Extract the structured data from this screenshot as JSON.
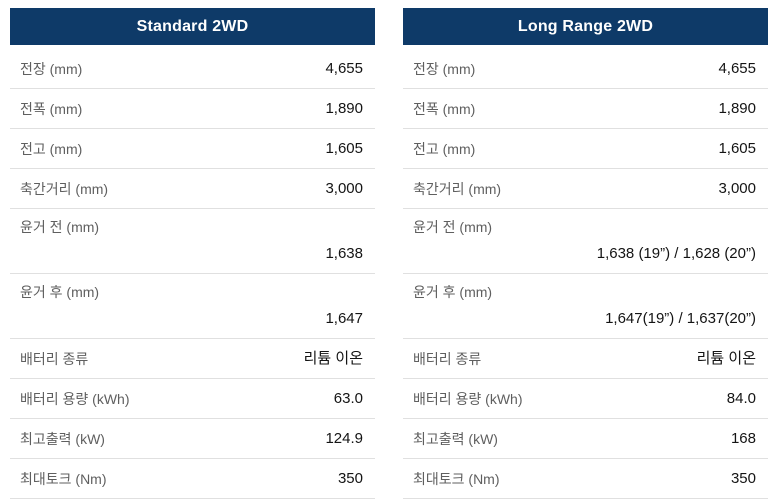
{
  "colors": {
    "header_bg": "#0e3a68",
    "header_text": "#ffffff",
    "label_text": "#5f5f5f",
    "value_text": "#141414",
    "divider": "#e0e0e0",
    "page_bg": "#ffffff"
  },
  "tables": [
    {
      "title": "Standard 2WD",
      "rows": [
        {
          "label": "전장 (mm)",
          "value": "4,655",
          "twoline": false
        },
        {
          "label": "전폭 (mm)",
          "value": "1,890",
          "twoline": false
        },
        {
          "label": "전고 (mm)",
          "value": "1,605",
          "twoline": false
        },
        {
          "label": "축간거리 (mm)",
          "value": "3,000",
          "twoline": false
        },
        {
          "label": "윤거 전 (mm)",
          "value": "1,638",
          "twoline": true
        },
        {
          "label": "윤거 후 (mm)",
          "value": "1,647",
          "twoline": true
        },
        {
          "label": "배터리 종류",
          "value": "리튬 이온",
          "twoline": false
        },
        {
          "label": "배터리 용량 (kWh)",
          "value": "63.0",
          "twoline": false
        },
        {
          "label": "최고출력 (kW)",
          "value": "124.9",
          "twoline": false
        },
        {
          "label": "최대토크 (Nm)",
          "value": "350",
          "twoline": false
        }
      ]
    },
    {
      "title": "Long Range 2WD",
      "rows": [
        {
          "label": "전장 (mm)",
          "value": "4,655",
          "twoline": false
        },
        {
          "label": "전폭 (mm)",
          "value": "1,890",
          "twoline": false
        },
        {
          "label": "전고 (mm)",
          "value": "1,605",
          "twoline": false
        },
        {
          "label": "축간거리 (mm)",
          "value": "3,000",
          "twoline": false
        },
        {
          "label": "윤거 전 (mm)",
          "value": "1,638 (19”) / 1,628 (20”)",
          "twoline": true
        },
        {
          "label": "윤거 후 (mm)",
          "value": "1,647(19”) / 1,637(20”)",
          "twoline": true
        },
        {
          "label": "배터리 종류",
          "value": "리튬 이온",
          "twoline": false
        },
        {
          "label": "배터리 용량 (kWh)",
          "value": "84.0",
          "twoline": false
        },
        {
          "label": "최고출력 (kW)",
          "value": "168",
          "twoline": false
        },
        {
          "label": "최대토크 (Nm)",
          "value": "350",
          "twoline": false
        }
      ]
    }
  ]
}
